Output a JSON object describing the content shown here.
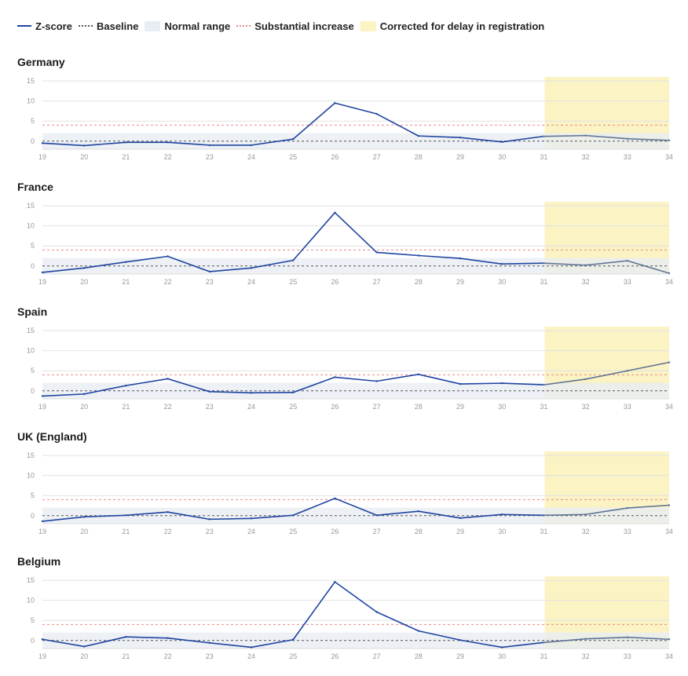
{
  "legend": {
    "zscore": "Z-score",
    "baseline": "Baseline",
    "normal": "Normal range",
    "substantial": "Substantial increase",
    "corrected": "Corrected for delay in registration"
  },
  "colors": {
    "line": "#1f44a0",
    "corrected_line": "#5e7394",
    "baseline": "#555555",
    "threshold": "#e8898a",
    "normal_band": "#e8edf3",
    "corrected_band": "#fbf3c4",
    "grid": "#e2e2e2"
  },
  "chart_data": [
    {
      "type": "line",
      "title": "Germany",
      "x": [
        19,
        20,
        21,
        22,
        23,
        24,
        25,
        26,
        27,
        28,
        29,
        30,
        31,
        32,
        33,
        34
      ],
      "y": [
        -0.5,
        -1.1,
        -0.3,
        -0.3,
        -1.0,
        -1.0,
        0.5,
        9.5,
        6.8,
        1.3,
        0.9,
        -0.2,
        1.2,
        1.4,
        0.6,
        0.2
      ],
      "ylim": [
        -2,
        16
      ],
      "yticks": [
        0,
        5,
        10,
        15
      ],
      "baseline": 0,
      "threshold": 4,
      "normal_range": [
        -2,
        2
      ],
      "corrected_from": 31
    },
    {
      "type": "line",
      "title": "France",
      "x": [
        19,
        20,
        21,
        22,
        23,
        24,
        25,
        26,
        27,
        28,
        29,
        30,
        31,
        32,
        33,
        34
      ],
      "y": [
        -1.6,
        -0.5,
        1.0,
        2.4,
        -1.4,
        -0.5,
        1.4,
        13.3,
        3.4,
        2.6,
        1.9,
        0.5,
        0.7,
        0.2,
        1.3,
        -1.8
      ],
      "ylim": [
        -2,
        16
      ],
      "yticks": [
        0,
        5,
        10,
        15
      ],
      "baseline": 0,
      "threshold": 4,
      "normal_range": [
        -2,
        2
      ],
      "corrected_from": 31
    },
    {
      "type": "line",
      "title": "Spain",
      "x": [
        19,
        20,
        21,
        22,
        23,
        24,
        25,
        26,
        27,
        28,
        29,
        30,
        31,
        32,
        33,
        34
      ],
      "y": [
        -1.3,
        -0.8,
        1.3,
        3.0,
        -0.2,
        -0.5,
        -0.4,
        3.4,
        2.4,
        4.1,
        1.7,
        1.9,
        1.5,
        2.9,
        5.0,
        7.1
      ],
      "ylim": [
        -2,
        16
      ],
      "yticks": [
        0,
        5,
        10,
        15
      ],
      "baseline": 0,
      "threshold": 4,
      "normal_range": [
        -2,
        2
      ],
      "corrected_from": 31
    },
    {
      "type": "line",
      "title": "UK (England)",
      "x": [
        19,
        20,
        21,
        22,
        23,
        24,
        25,
        26,
        27,
        28,
        29,
        30,
        31,
        32,
        33,
        34
      ],
      "y": [
        -1.4,
        -0.3,
        0.1,
        0.9,
        -0.9,
        -0.7,
        0.1,
        4.3,
        0.1,
        1.1,
        -0.6,
        0.3,
        0.1,
        0.3,
        1.9,
        2.6
      ],
      "ylim": [
        -2,
        16
      ],
      "yticks": [
        0,
        5,
        10,
        15
      ],
      "baseline": 0,
      "threshold": 4,
      "normal_range": [
        -2,
        2
      ],
      "corrected_from": 31
    },
    {
      "type": "line",
      "title": "Belgium",
      "x": [
        19,
        20,
        21,
        22,
        23,
        24,
        25,
        26,
        27,
        28,
        29,
        30,
        31,
        32,
        33,
        34
      ],
      "y": [
        0.3,
        -1.5,
        0.9,
        0.6,
        -0.6,
        -1.7,
        0.2,
        14.6,
        7.1,
        2.4,
        0.1,
        -1.7,
        -0.5,
        0.4,
        0.8,
        0.3
      ],
      "ylim": [
        -2,
        16
      ],
      "yticks": [
        0,
        5,
        10,
        15
      ],
      "baseline": 0,
      "threshold": 4,
      "normal_range": [
        -2,
        2
      ],
      "corrected_from": 31
    }
  ]
}
